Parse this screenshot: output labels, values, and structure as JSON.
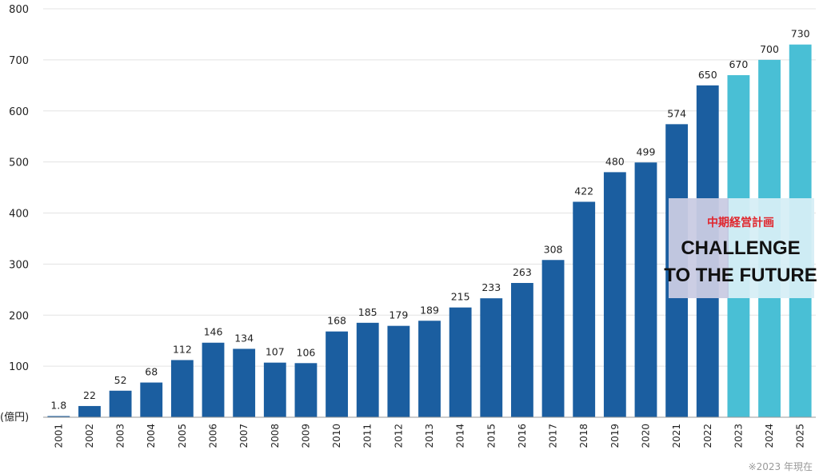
{
  "chart_data": {
    "type": "bar",
    "categories": [
      "2001",
      "2002",
      "2003",
      "2004",
      "2005",
      "2006",
      "2007",
      "2008",
      "2009",
      "2010",
      "2011",
      "2012",
      "2013",
      "2014",
      "2015",
      "2016",
      "2017",
      "2018",
      "2019",
      "2020",
      "2021",
      "2022",
      "2023",
      "2024",
      "2025"
    ],
    "values": [
      1.8,
      22,
      52,
      68,
      112,
      146,
      134,
      107,
      106,
      168,
      185,
      179,
      189,
      215,
      233,
      263,
      308,
      422,
      480,
      499,
      574,
      650,
      670,
      700,
      730
    ],
    "value_labels": [
      "1.8",
      "22",
      "52",
      "68",
      "112",
      "146",
      "134",
      "107",
      "106",
      "168",
      "185",
      "179",
      "189",
      "215",
      "233",
      "263",
      "308",
      "422",
      "480",
      "499",
      "574",
      "650",
      "670",
      "700",
      "730"
    ],
    "plan_categories": [
      "2023",
      "2024",
      "2025"
    ],
    "y_ticks": [
      "0",
      "100",
      "200",
      "300",
      "400",
      "500",
      "600",
      "700",
      "800"
    ],
    "ylim": [
      0,
      800
    ],
    "grid": true,
    "ylabel": "(億円)",
    "colors": {
      "actual": "#1b5ea0",
      "plan": "#49bfd5",
      "banner_left": "#c9cbe3",
      "banner_right": "#d6eef5",
      "banner_sub": "#e0262d"
    }
  },
  "banner": {
    "subtitle": "中期経営計画",
    "title_line1": "CHALLENGE",
    "title_line2": "TO THE FUTURE"
  },
  "footnote": "※2023 年現在"
}
